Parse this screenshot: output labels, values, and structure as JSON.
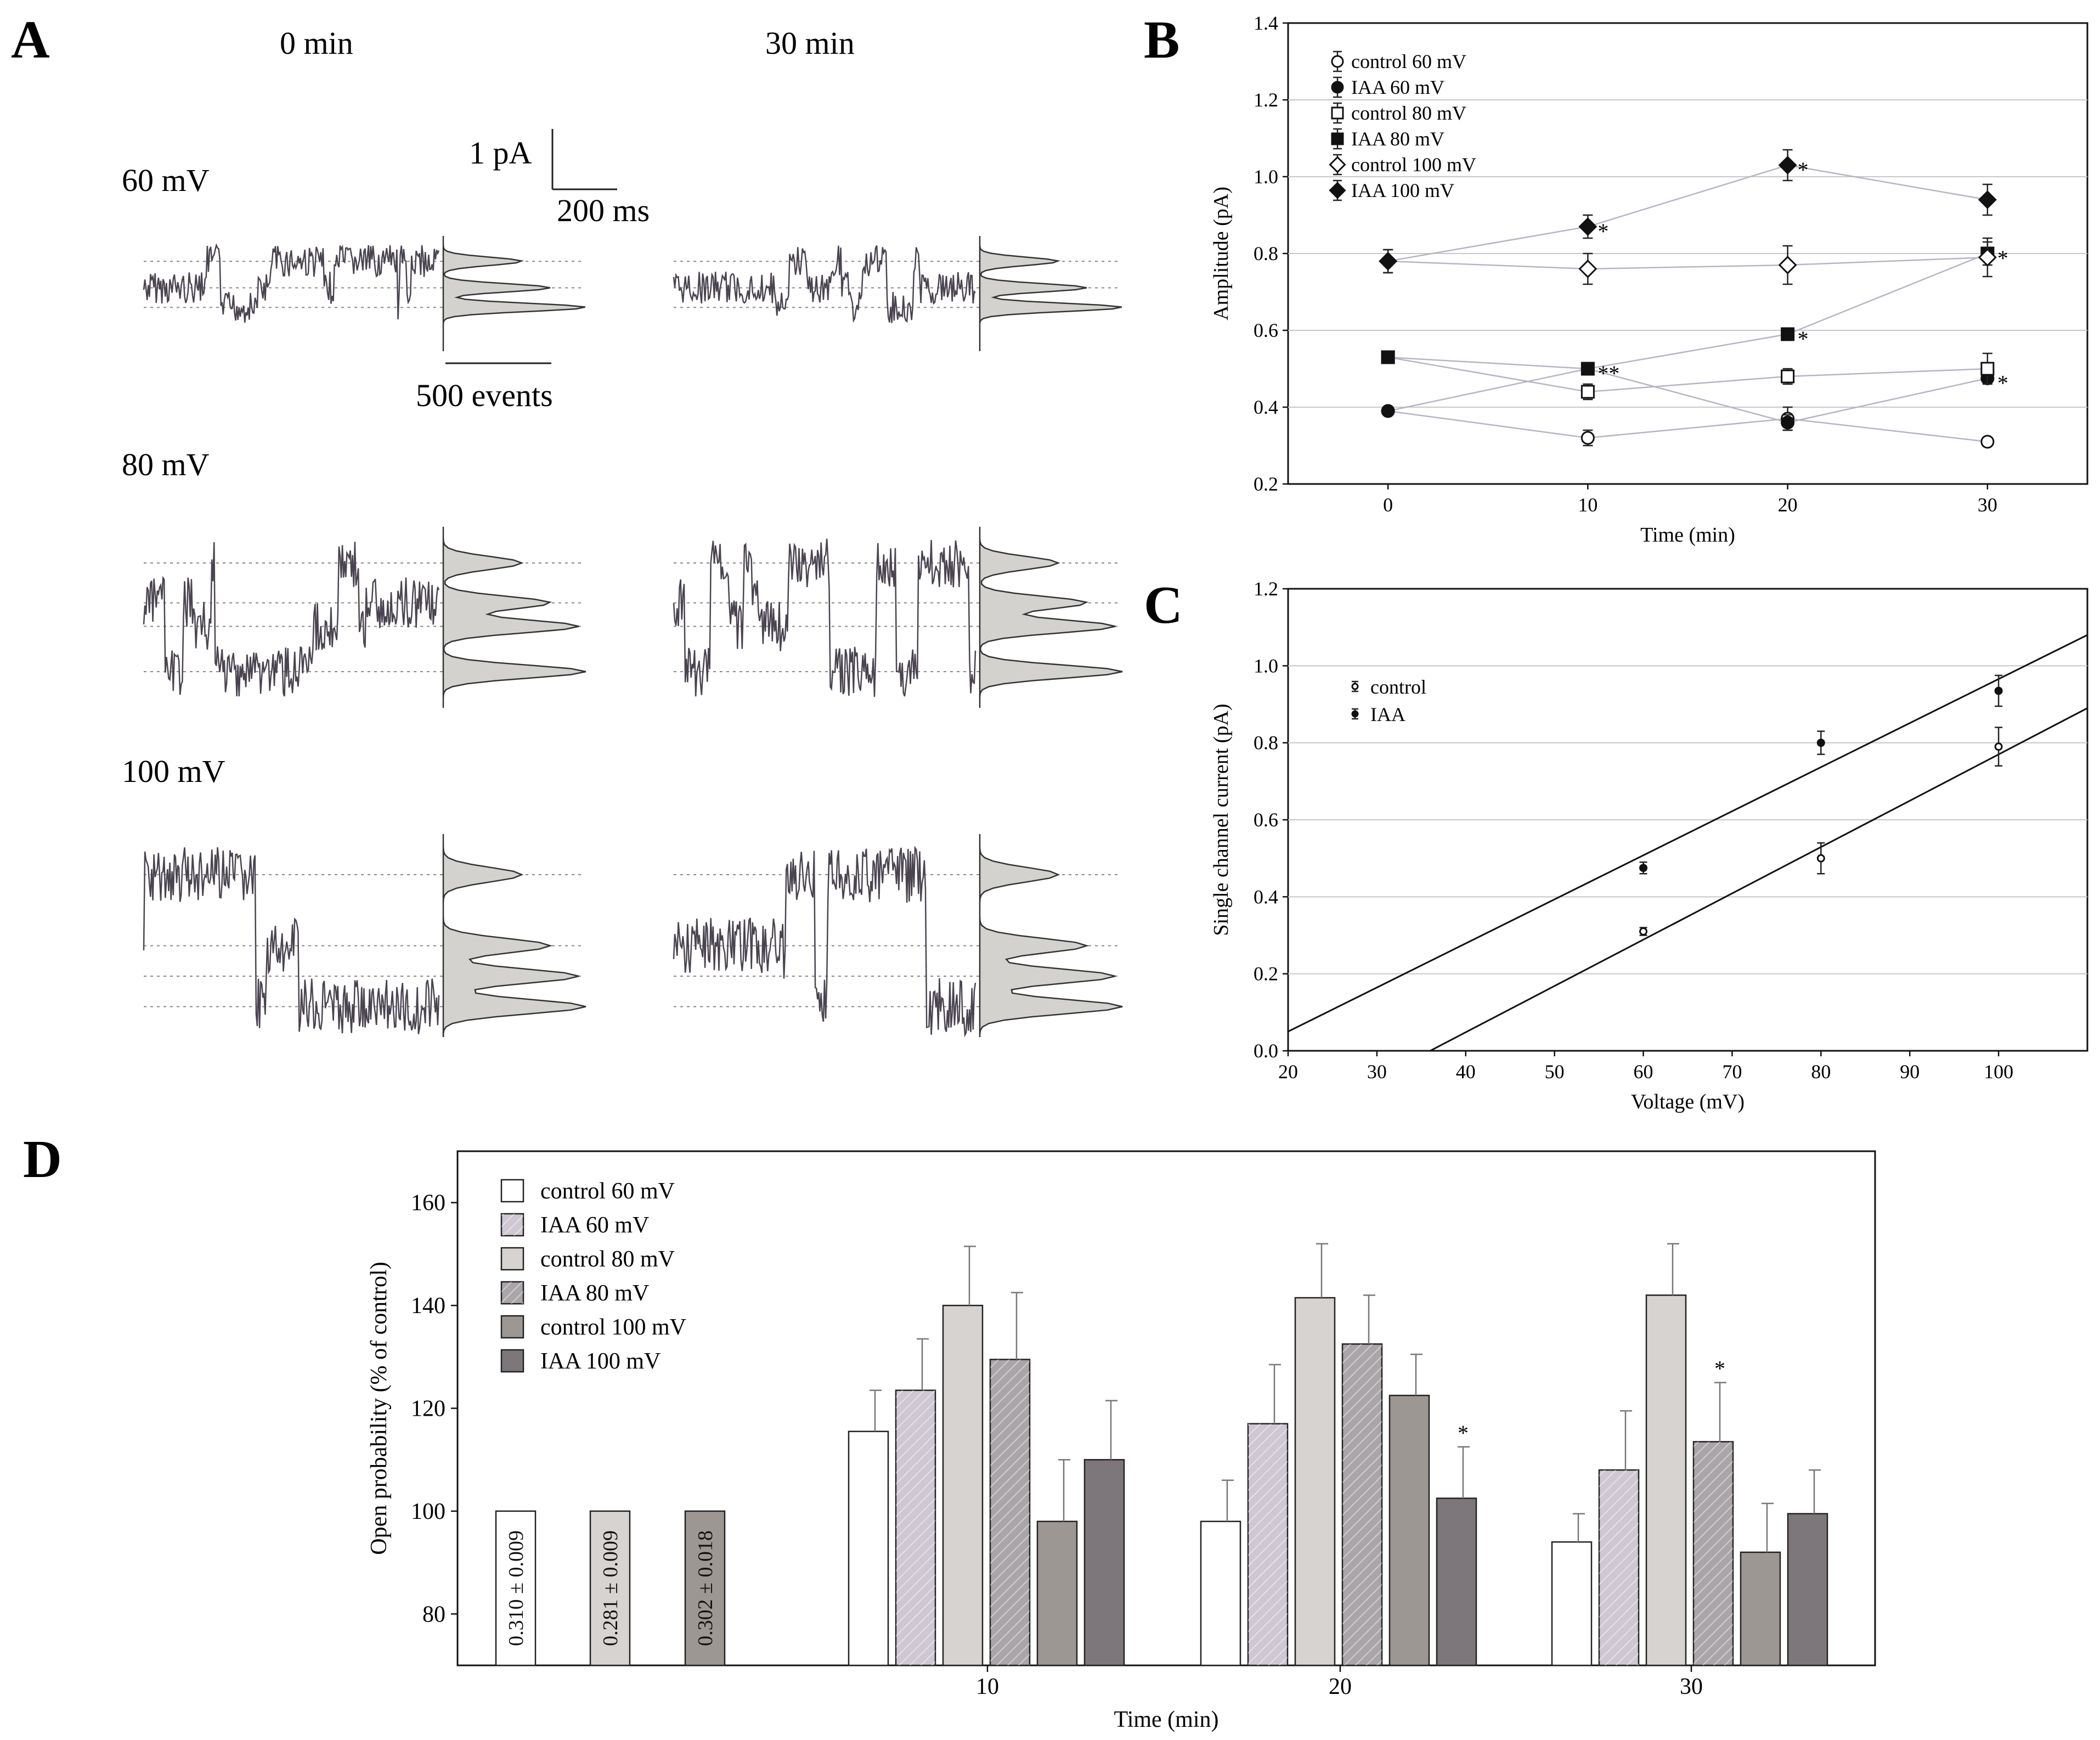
{
  "panels": {
    "A": {
      "label": "A",
      "col_titles": [
        "0 min",
        "30 min"
      ],
      "row_titles": [
        "60 mV",
        "80 mV",
        "100 mV"
      ],
      "scale_pA": "1 pA",
      "scale_ms": "200 ms",
      "scale_events": "500 events"
    },
    "B": {
      "label": "B"
    },
    "C": {
      "label": "C"
    },
    "D": {
      "label": "D"
    }
  },
  "chart_data": [
    {
      "id": "B",
      "type": "line",
      "title": "",
      "xlabel": "Time (min)",
      "ylabel": "Amplitude (pA)",
      "xlim": [
        -5,
        35
      ],
      "ylim": [
        0.2,
        1.4
      ],
      "xticks": [
        0,
        10,
        20,
        30
      ],
      "yticks": [
        0.2,
        0.4,
        0.6,
        0.8,
        1.0,
        1.2,
        1.4
      ],
      "grid": "horizontal",
      "legend_position": "top-left",
      "x": [
        0,
        10,
        20,
        30
      ],
      "series": [
        {
          "name": "control 60 mV",
          "marker": "circle-open",
          "values": [
            0.39,
            0.32,
            0.37,
            0.31
          ],
          "errors": [
            0.01,
            0.02,
            0.03,
            0.01
          ],
          "stars": [
            "",
            "",
            "",
            ""
          ]
        },
        {
          "name": "IAA 60 mV",
          "marker": "circle-filled",
          "values": [
            0.39,
            0.5,
            0.36,
            0.475
          ],
          "errors": [
            0.01,
            0.01,
            0.02,
            0.01
          ],
          "stars": [
            "",
            "",
            "",
            "*"
          ]
        },
        {
          "name": "control 80 mV",
          "marker": "square-open",
          "values": [
            0.53,
            0.44,
            0.48,
            0.5
          ],
          "errors": [
            0.01,
            0.02,
            0.02,
            0.04
          ],
          "stars": [
            "",
            "",
            "",
            ""
          ]
        },
        {
          "name": "IAA 80 mV",
          "marker": "square-filled",
          "values": [
            0.53,
            0.5,
            0.59,
            0.8
          ],
          "errors": [
            0.01,
            0.01,
            0.01,
            0.03
          ],
          "stars": [
            "",
            "**",
            "*",
            "*"
          ]
        },
        {
          "name": "control 100 mV",
          "marker": "diamond-open",
          "values": [
            0.78,
            0.76,
            0.77,
            0.79
          ],
          "errors": [
            0.03,
            0.04,
            0.05,
            0.05
          ],
          "stars": [
            "",
            "",
            "",
            ""
          ]
        },
        {
          "name": "IAA 100 mV",
          "marker": "diamond-filled",
          "values": [
            0.78,
            0.87,
            1.03,
            0.94
          ],
          "errors": [
            0.03,
            0.03,
            0.04,
            0.04
          ],
          "stars": [
            "",
            "*",
            "*",
            ""
          ]
        }
      ]
    },
    {
      "id": "C",
      "type": "scatter",
      "title": "",
      "xlabel": "Voltage (mV)",
      "ylabel": "Single channel current (pA)",
      "xlim": [
        20,
        110
      ],
      "ylim": [
        0.0,
        1.2
      ],
      "xticks": [
        20,
        30,
        40,
        50,
        60,
        70,
        80,
        90,
        100
      ],
      "yticks": [
        0.0,
        0.2,
        0.4,
        0.6,
        0.8,
        1.0,
        1.2
      ],
      "grid": "horizontal",
      "legend_position": "upper-left",
      "series": [
        {
          "name": "control",
          "marker": "circle-open",
          "x": [
            60,
            80,
            100
          ],
          "values": [
            0.31,
            0.5,
            0.79
          ],
          "errors": [
            0.01,
            0.04,
            0.05
          ],
          "fit_line": [
            [
              36,
              0.0
            ],
            [
              110,
              0.89
            ]
          ]
        },
        {
          "name": "IAA",
          "marker": "circle-filled",
          "x": [
            60,
            80,
            100
          ],
          "values": [
            0.475,
            0.8,
            0.935
          ],
          "errors": [
            0.015,
            0.03,
            0.04
          ],
          "fit_line": [
            [
              20,
              0.05
            ],
            [
              110,
              1.08
            ]
          ]
        }
      ]
    },
    {
      "id": "D",
      "type": "bar",
      "title": "",
      "xlabel": "Time (min)",
      "ylabel": "Open probability (% of control)",
      "ylim": [
        70,
        170
      ],
      "yticks": [
        80,
        100,
        120,
        140,
        160
      ],
      "categories": [
        "0",
        "10",
        "20",
        "30"
      ],
      "category_labels": [
        "",
        "10",
        "20",
        "30"
      ],
      "legend_position": "top-left",
      "baseline_bars": [
        {
          "series": "control 60 mV",
          "value": 100,
          "label": "0.310 ± 0.009"
        },
        {
          "series": "control 80 mV",
          "value": 100,
          "label": "0.281 ± 0.009"
        },
        {
          "series": "control 100 mV",
          "value": 100,
          "label": "0.302 ± 0.018"
        }
      ],
      "series": [
        {
          "name": "control 60 mV",
          "color": "#ffffff",
          "values": [
            null,
            115.5,
            98,
            94
          ],
          "errors": [
            null,
            8,
            8,
            5.5
          ],
          "stars": [
            "",
            "",
            "",
            ""
          ]
        },
        {
          "name": "IAA 60 mV",
          "color": "#cfc8d2",
          "hatched": true,
          "values": [
            null,
            123.5,
            117,
            108
          ],
          "errors": [
            null,
            10,
            11.5,
            11.5
          ],
          "stars": [
            "",
            "",
            "",
            ""
          ]
        },
        {
          "name": "control 80 mV",
          "color": "#d6d3d0",
          "values": [
            null,
            140,
            141.5,
            142
          ],
          "errors": [
            null,
            11.5,
            10.5,
            10
          ],
          "stars": [
            "",
            "",
            "",
            ""
          ]
        },
        {
          "name": "IAA 80 mV",
          "color": "#aaa5a9",
          "hatched": true,
          "values": [
            null,
            129.5,
            132.5,
            113.5
          ],
          "errors": [
            null,
            13,
            9.5,
            11.5
          ],
          "stars": [
            "",
            "",
            "",
            "*"
          ]
        },
        {
          "name": "control 100 mV",
          "color": "#9c9793",
          "values": [
            null,
            98,
            122.5,
            92
          ],
          "errors": [
            null,
            12,
            8,
            9.5
          ],
          "stars": [
            "",
            "",
            "",
            ""
          ]
        },
        {
          "name": "IAA 100 mV",
          "color": "#7d777b",
          "values": [
            null,
            110,
            102.5,
            99.5
          ],
          "errors": [
            null,
            11.5,
            10,
            8.5
          ],
          "stars": [
            "",
            "",
            "*",
            ""
          ]
        }
      ]
    }
  ]
}
